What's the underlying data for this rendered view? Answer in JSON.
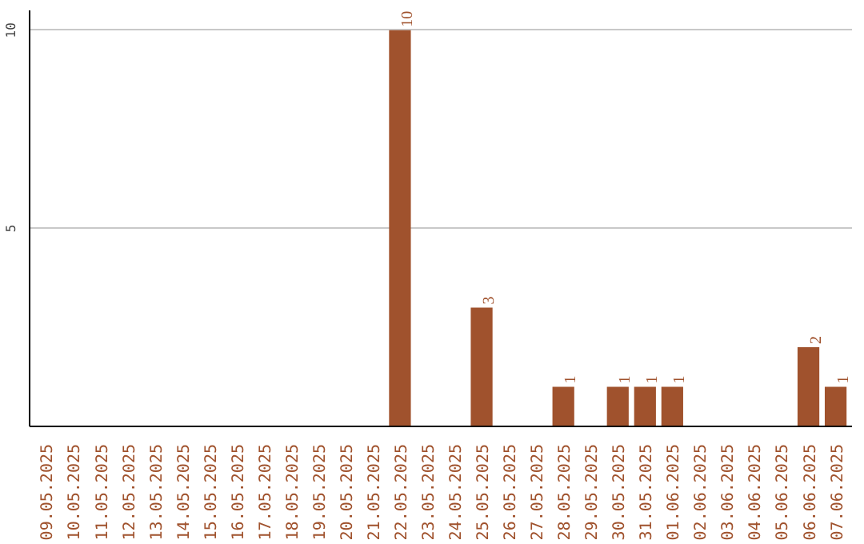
{
  "chart_data": {
    "type": "bar",
    "categories": [
      "09.05.2025",
      "10.05.2025",
      "11.05.2025",
      "12.05.2025",
      "13.05.2025",
      "14.05.2025",
      "15.05.2025",
      "16.05.2025",
      "17.05.2025",
      "18.05.2025",
      "19.05.2025",
      "20.05.2025",
      "21.05.2025",
      "22.05.2025",
      "23.05.2025",
      "24.05.2025",
      "25.05.2025",
      "26.05.2025",
      "27.05.2025",
      "28.05.2025",
      "29.05.2025",
      "30.05.2025",
      "31.05.2025",
      "01.06.2025",
      "02.06.2025",
      "03.06.2025",
      "04.06.2025",
      "05.06.2025",
      "06.06.2025",
      "07.06.2025"
    ],
    "values": [
      0,
      0,
      0,
      0,
      0,
      0,
      0,
      0,
      0,
      0,
      0,
      0,
      0,
      10,
      0,
      0,
      3,
      0,
      0,
      1,
      0,
      1,
      1,
      1,
      0,
      0,
      0,
      0,
      2,
      1
    ],
    "value_labels": [
      null,
      null,
      null,
      null,
      null,
      null,
      null,
      null,
      null,
      null,
      null,
      null,
      null,
      "10",
      null,
      null,
      "3",
      null,
      null,
      "1",
      null,
      "1",
      "1",
      "1",
      null,
      null,
      null,
      null,
      "2",
      "1"
    ],
    "color": "#a0522d",
    "ylim": [
      0,
      10.5
    ],
    "yticks": [
      5,
      10
    ],
    "grid": "y"
  }
}
